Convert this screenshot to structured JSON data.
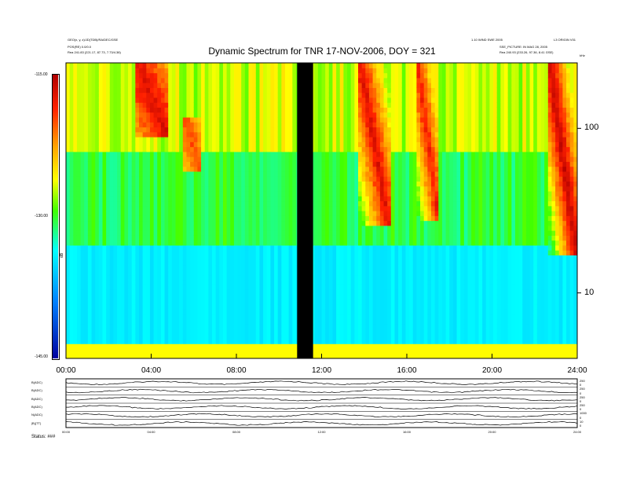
{
  "header": {
    "title": "Dynamic Spectrum for TNR 17-NOV-2006, DOY = 321",
    "left_line1": "GEO(x, y, z)/JD(TDB)/RA/DEC/GSE",
    "left_line2": "POS(RE) 0.0/0.0",
    "left_line3": "Rea  241.83 (221.17, 87.73, 7.73/4.38)",
    "right_line1": "1.10 WIND SWE 2005",
    "right_line2": "SSE_PICTURE: IN MAG 28, 2005",
    "right_line3": "Rea  240.93 (233.26, 97.36, 8.41 GSE)",
    "right_top": "L3 ORIGIN V01",
    "right_unit": "kHz"
  },
  "colorbar": {
    "top_label": "-115.00",
    "mid_label": "-130.00",
    "bottom_label": "-145.00",
    "axis_label": "dB",
    "colors": [
      "#7a0000",
      "#e00000",
      "#ff7a00",
      "#ffff00",
      "#00e000",
      "#00ffff",
      "#0080ff",
      "#0000a0"
    ]
  },
  "chart_data": {
    "type": "heatmap",
    "title": "Dynamic Spectrum for TNR 17-NOV-2006, DOY = 321",
    "x_tick_labels": [
      "00:00",
      "04:00",
      "08:00",
      "12:00",
      "16:00",
      "20:00",
      "24:00"
    ],
    "x_range_hours": [
      0,
      24
    ],
    "y_scale": "log",
    "y_tick_labels": [
      "100",
      "10"
    ],
    "y_ticks": [
      100,
      10
    ],
    "y_range_khz": [
      4,
      250
    ],
    "z_range_db": [
      -145,
      -115
    ],
    "data_gap_hours": [
      10.85,
      11.6
    ],
    "intensity_bursts": [
      {
        "start_hour": 3.3,
        "end_hour": 4.8,
        "low_khz": 90,
        "high_khz": 250,
        "peak_db": -116
      },
      {
        "start_hour": 5.5,
        "end_hour": 6.4,
        "low_khz": 55,
        "high_khz": 120,
        "peak_db": -119
      },
      {
        "start_hour": 13.8,
        "end_hour": 15.2,
        "low_khz": 25,
        "high_khz": 250,
        "peak_db": -116
      },
      {
        "start_hour": 16.5,
        "end_hour": 17.5,
        "low_khz": 28,
        "high_khz": 250,
        "peak_db": -117
      },
      {
        "start_hour": 22.7,
        "end_hour": 24.0,
        "low_khz": 17,
        "high_khz": 250,
        "peak_db": -115
      }
    ],
    "lower_panel": {
      "labels": [
        "B(ADC)",
        "B(ADC)",
        "B(ADC)",
        "B(ADC)",
        "N(ADC)",
        "|B|(TT)"
      ],
      "right_scale": [
        "250",
        "0",
        "250",
        "0",
        "250",
        "0",
        "250",
        "0",
        "1000",
        "0",
        "10",
        "0"
      ],
      "x_tick_labels": [
        "00:00",
        "04:00",
        "08:00",
        "12:00",
        "16:00",
        "20:00",
        "24:00"
      ],
      "footer": "Status: ###"
    }
  }
}
